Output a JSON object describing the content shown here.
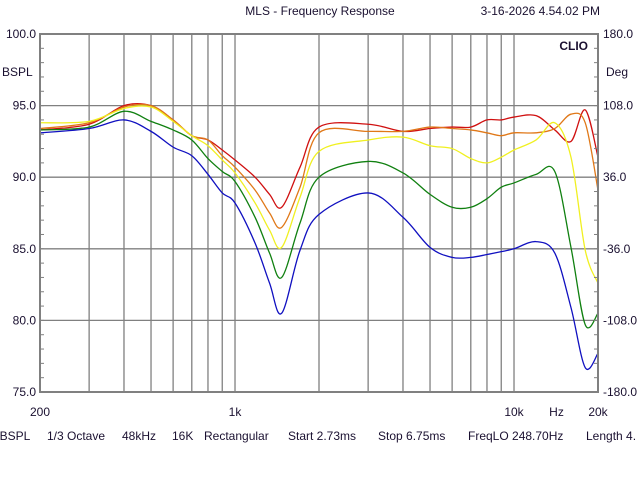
{
  "header": {
    "title": "MLS - Frequency Response",
    "timestamp": "3-16-2026 4.54.02 PM",
    "brand": "CLIO"
  },
  "footer": {
    "items": [
      "dBSPL",
      "1/3 Octave",
      "48kHz",
      "16K",
      "Rectangular",
      "Start 2.73ms",
      "Stop 6.75ms",
      "FreqLO 248.70Hz",
      "Length 4."
    ]
  },
  "chart_data": {
    "type": "line",
    "title": "MLS - Frequency Response",
    "xlabel": "Hz",
    "ylabel": "BSPL",
    "y2label": "Deg",
    "xscale": "log",
    "xlim": [
      200,
      20000
    ],
    "ylim": [
      75,
      100
    ],
    "y2lim": [
      -180,
      180
    ],
    "grid": true,
    "x_ticks": [
      {
        "v": 200,
        "label": "200"
      },
      {
        "v": 1000,
        "label": "1k"
      },
      {
        "v": 10000,
        "label": "10k"
      },
      {
        "v": 20000,
        "label": "20k"
      }
    ],
    "x_unit_label_at": 14200,
    "x_gridlines": [
      300,
      400,
      500,
      600,
      700,
      800,
      900,
      1000,
      2000,
      3000,
      4000,
      5000,
      6000,
      7000,
      8000,
      9000,
      10000
    ],
    "y_ticks": [
      {
        "v": 100,
        "label": "100.0"
      },
      {
        "v": 95,
        "label": "95.0"
      },
      {
        "v": 90,
        "label": "90.0"
      },
      {
        "v": 85,
        "label": "85.0"
      },
      {
        "v": 80,
        "label": "80.0"
      },
      {
        "v": 75,
        "label": "75.0"
      }
    ],
    "y2_ticks": [
      {
        "v": 100,
        "label": "180.0"
      },
      {
        "v": 95,
        "label": "108.0"
      },
      {
        "v": 90,
        "label": "36.0"
      },
      {
        "v": 85,
        "label": "-36.0"
      },
      {
        "v": 80,
        "label": "-108.0"
      },
      {
        "v": 75,
        "label": "-180.0"
      }
    ],
    "x": [
      200,
      300,
      400,
      500,
      600,
      700,
      800,
      900,
      1000,
      1180,
      1330,
      1470,
      1710,
      2000,
      3000,
      4000,
      5000,
      6000,
      7000,
      8000,
      9000,
      10000,
      12000,
      14000,
      16000,
      18000,
      20000
    ],
    "series": [
      {
        "name": "red",
        "color": "#d01010",
        "values": [
          93.3,
          93.7,
          95.0,
          95.0,
          94.0,
          92.9,
          92.6,
          91.9,
          91.2,
          90.0,
          88.8,
          87.9,
          90.7,
          93.5,
          93.7,
          93.2,
          93.4,
          93.5,
          93.5,
          94.0,
          94.0,
          94.2,
          94.3,
          93.3,
          92.5,
          94.7,
          91.4
        ]
      },
      {
        "name": "orange",
        "color": "#e07818",
        "values": [
          93.4,
          93.8,
          94.9,
          95.0,
          94.0,
          92.9,
          92.6,
          91.5,
          90.7,
          89.1,
          87.5,
          86.5,
          89.3,
          93.1,
          93.2,
          93.2,
          93.5,
          93.4,
          93.3,
          93.1,
          92.9,
          93.1,
          93.1,
          93.4,
          94.4,
          93.8,
          89.1
        ]
      },
      {
        "name": "yellow",
        "color": "#f0f020",
        "values": [
          93.8,
          93.9,
          94.8,
          94.9,
          93.9,
          92.9,
          92.2,
          91.2,
          90.3,
          88.2,
          86.3,
          85.1,
          88.6,
          91.8,
          92.6,
          92.8,
          92.2,
          92.0,
          91.3,
          91.0,
          91.4,
          91.9,
          92.6,
          93.8,
          91.4,
          84.9,
          82.6
        ]
      },
      {
        "name": "green",
        "color": "#108010",
        "values": [
          93.3,
          93.5,
          94.6,
          93.9,
          93.3,
          92.6,
          91.3,
          90.4,
          89.7,
          87.2,
          84.7,
          83.0,
          86.8,
          90.0,
          91.1,
          90.3,
          88.8,
          87.9,
          87.9,
          88.5,
          89.3,
          89.6,
          90.2,
          90.4,
          85.1,
          79.7,
          80.5
        ]
      },
      {
        "name": "blue",
        "color": "#1010c0",
        "values": [
          93.1,
          93.4,
          94.0,
          93.2,
          92.1,
          91.5,
          90.2,
          88.9,
          88.2,
          85.4,
          82.6,
          80.5,
          84.9,
          87.4,
          88.9,
          87.2,
          85.1,
          84.4,
          84.4,
          84.6,
          84.8,
          85.0,
          85.5,
          84.7,
          80.9,
          76.7,
          77.7
        ]
      }
    ]
  }
}
